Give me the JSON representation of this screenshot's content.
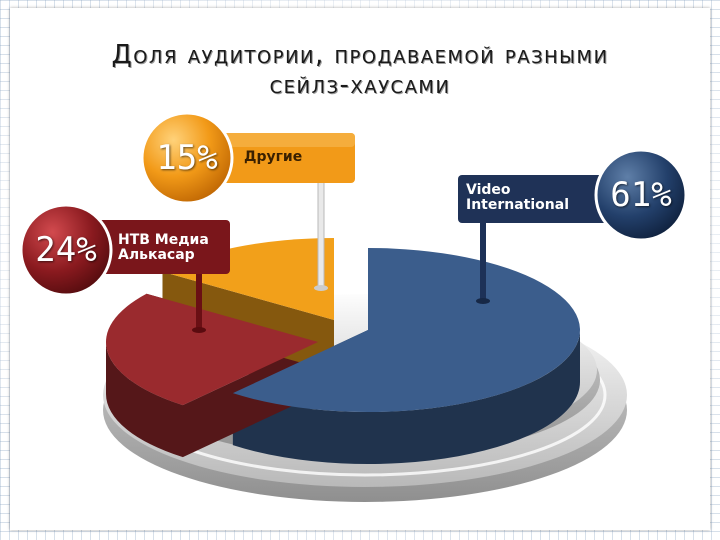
{
  "title": {
    "line1": "Доля аудитории, продаваемой разными",
    "line2": "сейлз-хаусами"
  },
  "chart_data": {
    "type": "pie",
    "title": "Доля аудитории, продаваемой разными сейлз-хаусами",
    "slices": [
      {
        "name": "Video International",
        "value": 61,
        "label": "61%",
        "color": "#3b5d8c"
      },
      {
        "name": "НТВ Медиа Алькасар",
        "value": 24,
        "label": "24%",
        "color": "#9a2a2e"
      },
      {
        "name": "Другие",
        "value": 15,
        "label": "15%",
        "color": "#f2a01a"
      }
    ]
  }
}
